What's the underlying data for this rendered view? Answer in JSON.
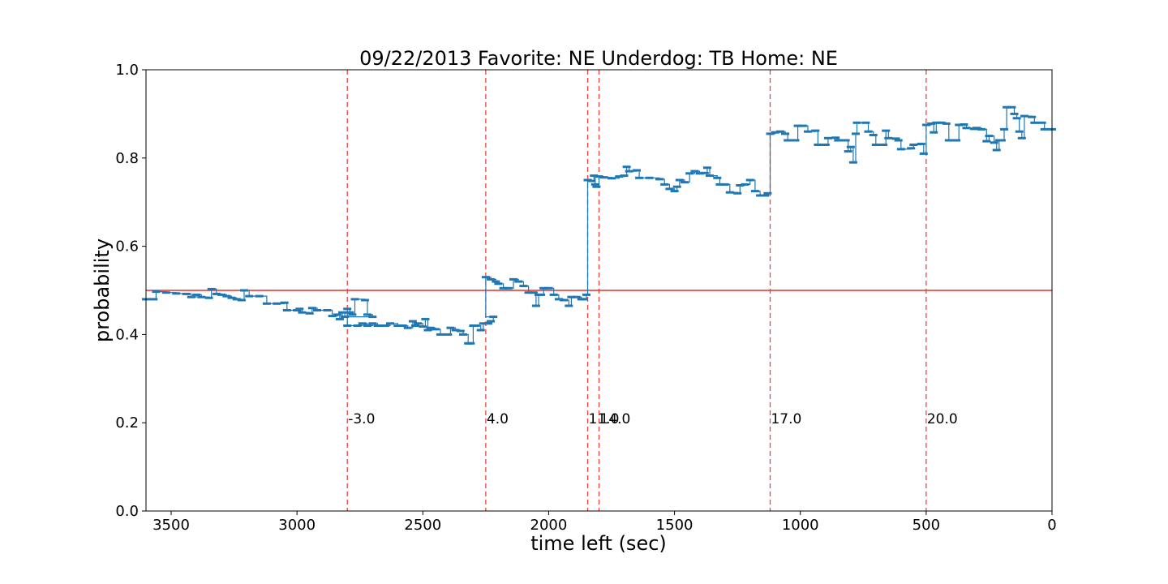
{
  "chart_data": {
    "type": "line",
    "title": "09/22/2013 Favorite: NE Underdog: TB Home: NE",
    "xlabel": "time left (sec)",
    "ylabel": "probability",
    "xlim": [
      3600,
      0
    ],
    "ylim": [
      0,
      1
    ],
    "xticks": [
      3500,
      3000,
      2500,
      2000,
      1500,
      1000,
      500,
      0
    ],
    "xtick_labels": [
      "3500",
      "3000",
      "2500",
      "2000",
      "1500",
      "1000",
      "500",
      "0"
    ],
    "yticks": [
      0,
      0.2,
      0.4,
      0.6,
      0.8,
      1.0
    ],
    "ytick_labels": [
      "0.0",
      "0.2",
      "0.4",
      "0.6",
      "0.8",
      "1.0"
    ],
    "grid": false,
    "hline": {
      "y": 0.5,
      "color": "#e0302b"
    },
    "series_color": "#1f77b4",
    "event_line_color": "#f0413d",
    "events": [
      {
        "x": 2800,
        "label": "-3.0"
      },
      {
        "x": 2250,
        "label": "4.0"
      },
      {
        "x": 1845,
        "label": "11.0"
      },
      {
        "x": 1800,
        "label": "14.0"
      },
      {
        "x": 1120,
        "label": "17.0"
      },
      {
        "x": 500,
        "label": "20.0"
      }
    ],
    "series": [
      {
        "points": [
          [
            3600,
            0.48
          ],
          [
            3570,
            0.48
          ],
          [
            3560,
            0.497
          ],
          [
            3520,
            0.495
          ],
          [
            3480,
            0.493
          ],
          [
            3440,
            0.492
          ],
          [
            3420,
            0.485
          ],
          [
            3400,
            0.49
          ],
          [
            3380,
            0.485
          ],
          [
            3350,
            0.483
          ],
          [
            3340,
            0.503
          ],
          [
            3320,
            0.492
          ],
          [
            3300,
            0.49
          ],
          [
            3280,
            0.487
          ],
          [
            3260,
            0.483
          ],
          [
            3240,
            0.48
          ],
          [
            3220,
            0.478
          ],
          [
            3210,
            0.5
          ],
          [
            3190,
            0.487
          ],
          [
            3150,
            0.487
          ],
          [
            3120,
            0.47
          ],
          [
            3080,
            0.47
          ],
          [
            3050,
            0.472
          ],
          [
            3040,
            0.455
          ],
          [
            3000,
            0.455
          ],
          [
            2990,
            0.458
          ],
          [
            2980,
            0.45
          ],
          [
            2950,
            0.448
          ],
          [
            2940,
            0.46
          ],
          [
            2920,
            0.455
          ],
          [
            2880,
            0.455
          ],
          [
            2860,
            0.442
          ],
          [
            2840,
            0.445
          ],
          [
            2830,
            0.435
          ],
          [
            2820,
            0.45
          ],
          [
            2810,
            0.44
          ],
          [
            2800,
            0.458
          ],
          [
            2790,
            0.45
          ],
          [
            2780,
            0.445
          ],
          [
            2770,
            0.48
          ],
          [
            2730,
            0.478
          ],
          [
            2720,
            0.445
          ],
          [
            2700,
            0.44
          ],
          [
            2800,
            0.42
          ],
          [
            2760,
            0.42
          ],
          [
            2740,
            0.425
          ],
          [
            2720,
            0.42
          ],
          [
            2700,
            0.425
          ],
          [
            2680,
            0.42
          ],
          [
            2650,
            0.42
          ],
          [
            2630,
            0.425
          ],
          [
            2600,
            0.42
          ],
          [
            2580,
            0.42
          ],
          [
            2560,
            0.415
          ],
          [
            2540,
            0.43
          ],
          [
            2530,
            0.42
          ],
          [
            2520,
            0.425
          ],
          [
            2500,
            0.418
          ],
          [
            2490,
            0.435
          ],
          [
            2480,
            0.41
          ],
          [
            2470,
            0.415
          ],
          [
            2450,
            0.412
          ],
          [
            2430,
            0.4
          ],
          [
            2400,
            0.4
          ],
          [
            2390,
            0.415
          ],
          [
            2370,
            0.41
          ],
          [
            2350,
            0.408
          ],
          [
            2340,
            0.4
          ],
          [
            2320,
            0.38
          ],
          [
            2310,
            0.38
          ],
          [
            2300,
            0.42
          ],
          [
            2290,
            0.42
          ],
          [
            2270,
            0.41
          ],
          [
            2260,
            0.425
          ],
          [
            2240,
            0.425
          ],
          [
            2230,
            0.43
          ],
          [
            2220,
            0.44
          ],
          [
            2250,
            0.53
          ],
          [
            2230,
            0.525
          ],
          [
            2210,
            0.52
          ],
          [
            2200,
            0.515
          ],
          [
            2180,
            0.505
          ],
          [
            2160,
            0.505
          ],
          [
            2140,
            0.525
          ],
          [
            2120,
            0.52
          ],
          [
            2100,
            0.51
          ],
          [
            2080,
            0.495
          ],
          [
            2060,
            0.495
          ],
          [
            2050,
            0.465
          ],
          [
            2040,
            0.49
          ],
          [
            2030,
            0.49
          ],
          [
            2020,
            0.505
          ],
          [
            2000,
            0.505
          ],
          [
            1980,
            0.49
          ],
          [
            1960,
            0.48
          ],
          [
            1940,
            0.478
          ],
          [
            1920,
            0.465
          ],
          [
            1910,
            0.485
          ],
          [
            1890,
            0.485
          ],
          [
            1870,
            0.48
          ],
          [
            1860,
            0.48
          ],
          [
            1850,
            0.49
          ],
          [
            1845,
            0.75
          ],
          [
            1830,
            0.748
          ],
          [
            1820,
            0.76
          ],
          [
            1815,
            0.74
          ],
          [
            1810,
            0.735
          ],
          [
            1800,
            0.758
          ],
          [
            1780,
            0.756
          ],
          [
            1750,
            0.754
          ],
          [
            1720,
            0.758
          ],
          [
            1700,
            0.76
          ],
          [
            1690,
            0.78
          ],
          [
            1680,
            0.77
          ],
          [
            1650,
            0.772
          ],
          [
            1640,
            0.755
          ],
          [
            1600,
            0.755
          ],
          [
            1560,
            0.752
          ],
          [
            1540,
            0.74
          ],
          [
            1520,
            0.73
          ],
          [
            1500,
            0.725
          ],
          [
            1490,
            0.735
          ],
          [
            1480,
            0.75
          ],
          [
            1460,
            0.745
          ],
          [
            1440,
            0.765
          ],
          [
            1420,
            0.77
          ],
          [
            1400,
            0.765
          ],
          [
            1380,
            0.766
          ],
          [
            1370,
            0.778
          ],
          [
            1360,
            0.76
          ],
          [
            1330,
            0.755
          ],
          [
            1320,
            0.74
          ],
          [
            1300,
            0.74
          ],
          [
            1280,
            0.722
          ],
          [
            1250,
            0.72
          ],
          [
            1240,
            0.738
          ],
          [
            1220,
            0.74
          ],
          [
            1200,
            0.75
          ],
          [
            1180,
            0.725
          ],
          [
            1160,
            0.715
          ],
          [
            1140,
            0.715
          ],
          [
            1130,
            0.72
          ],
          [
            1120,
            0.855
          ],
          [
            1100,
            0.858
          ],
          [
            1080,
            0.86
          ],
          [
            1060,
            0.855
          ],
          [
            1050,
            0.84
          ],
          [
            1020,
            0.84
          ],
          [
            1010,
            0.873
          ],
          [
            990,
            0.873
          ],
          [
            970,
            0.86
          ],
          [
            940,
            0.862
          ],
          [
            930,
            0.83
          ],
          [
            900,
            0.83
          ],
          [
            890,
            0.845
          ],
          [
            860,
            0.846
          ],
          [
            850,
            0.84
          ],
          [
            840,
            0.84
          ],
          [
            820,
            0.84
          ],
          [
            810,
            0.815
          ],
          [
            800,
            0.825
          ],
          [
            790,
            0.79
          ],
          [
            780,
            0.855
          ],
          [
            775,
            0.88
          ],
          [
            740,
            0.88
          ],
          [
            730,
            0.86
          ],
          [
            710,
            0.852
          ],
          [
            700,
            0.83
          ],
          [
            670,
            0.83
          ],
          [
            660,
            0.862
          ],
          [
            650,
            0.845
          ],
          [
            620,
            0.844
          ],
          [
            610,
            0.84
          ],
          [
            600,
            0.82
          ],
          [
            560,
            0.822
          ],
          [
            550,
            0.83
          ],
          [
            520,
            0.832
          ],
          [
            510,
            0.81
          ],
          [
            500,
            0.875
          ],
          [
            480,
            0.878
          ],
          [
            470,
            0.858
          ],
          [
            460,
            0.88
          ],
          [
            440,
            0.88
          ],
          [
            420,
            0.878
          ],
          [
            410,
            0.84
          ],
          [
            380,
            0.84
          ],
          [
            370,
            0.875
          ],
          [
            350,
            0.876
          ],
          [
            340,
            0.868
          ],
          [
            310,
            0.866
          ],
          [
            300,
            0.868
          ],
          [
            280,
            0.865
          ],
          [
            260,
            0.838
          ],
          [
            250,
            0.85
          ],
          [
            230,
            0.835
          ],
          [
            220,
            0.818
          ],
          [
            210,
            0.84
          ],
          [
            200,
            0.84
          ],
          [
            190,
            0.865
          ],
          [
            180,
            0.915
          ],
          [
            160,
            0.915
          ],
          [
            150,
            0.9
          ],
          [
            140,
            0.89
          ],
          [
            130,
            0.86
          ],
          [
            120,
            0.845
          ],
          [
            110,
            0.895
          ],
          [
            80,
            0.893
          ],
          [
            70,
            0.88
          ],
          [
            40,
            0.88
          ],
          [
            30,
            0.865
          ],
          [
            0,
            0.865
          ]
        ]
      }
    ]
  }
}
